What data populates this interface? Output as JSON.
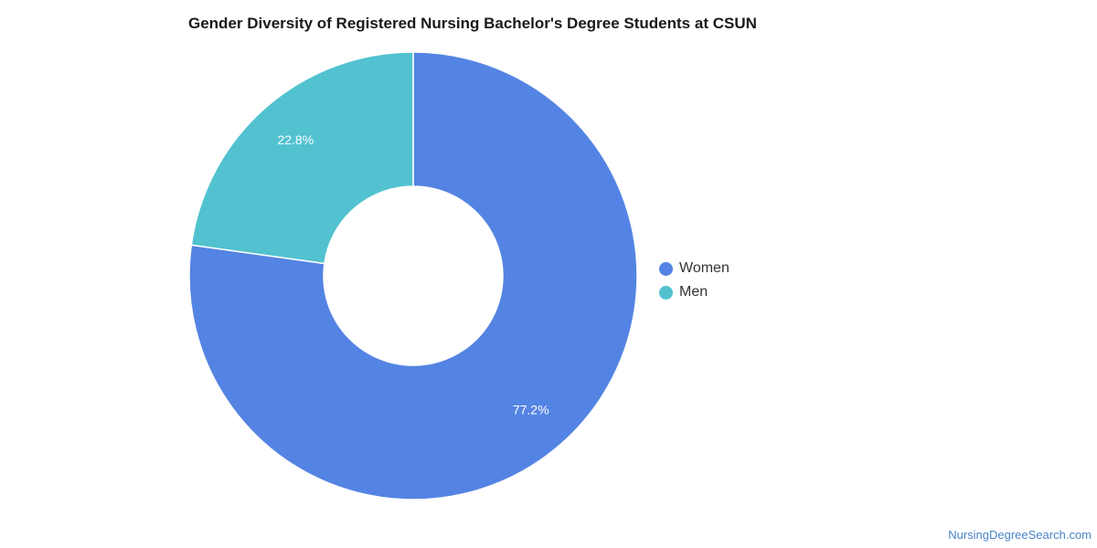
{
  "chart_data": {
    "type": "pie",
    "title": "Gender Diversity of Registered Nursing Bachelor's Degree Students at CSUN",
    "donut": true,
    "slices": [
      {
        "name": "Women",
        "value": 77.2,
        "label": "77.2%",
        "color": "#5484e3"
      },
      {
        "name": "Men",
        "value": 22.8,
        "label": "22.8%",
        "color": "#52c2d0"
      }
    ],
    "legend_position": "right"
  },
  "footer": {
    "source": "NursingDegreeSearch.com"
  }
}
